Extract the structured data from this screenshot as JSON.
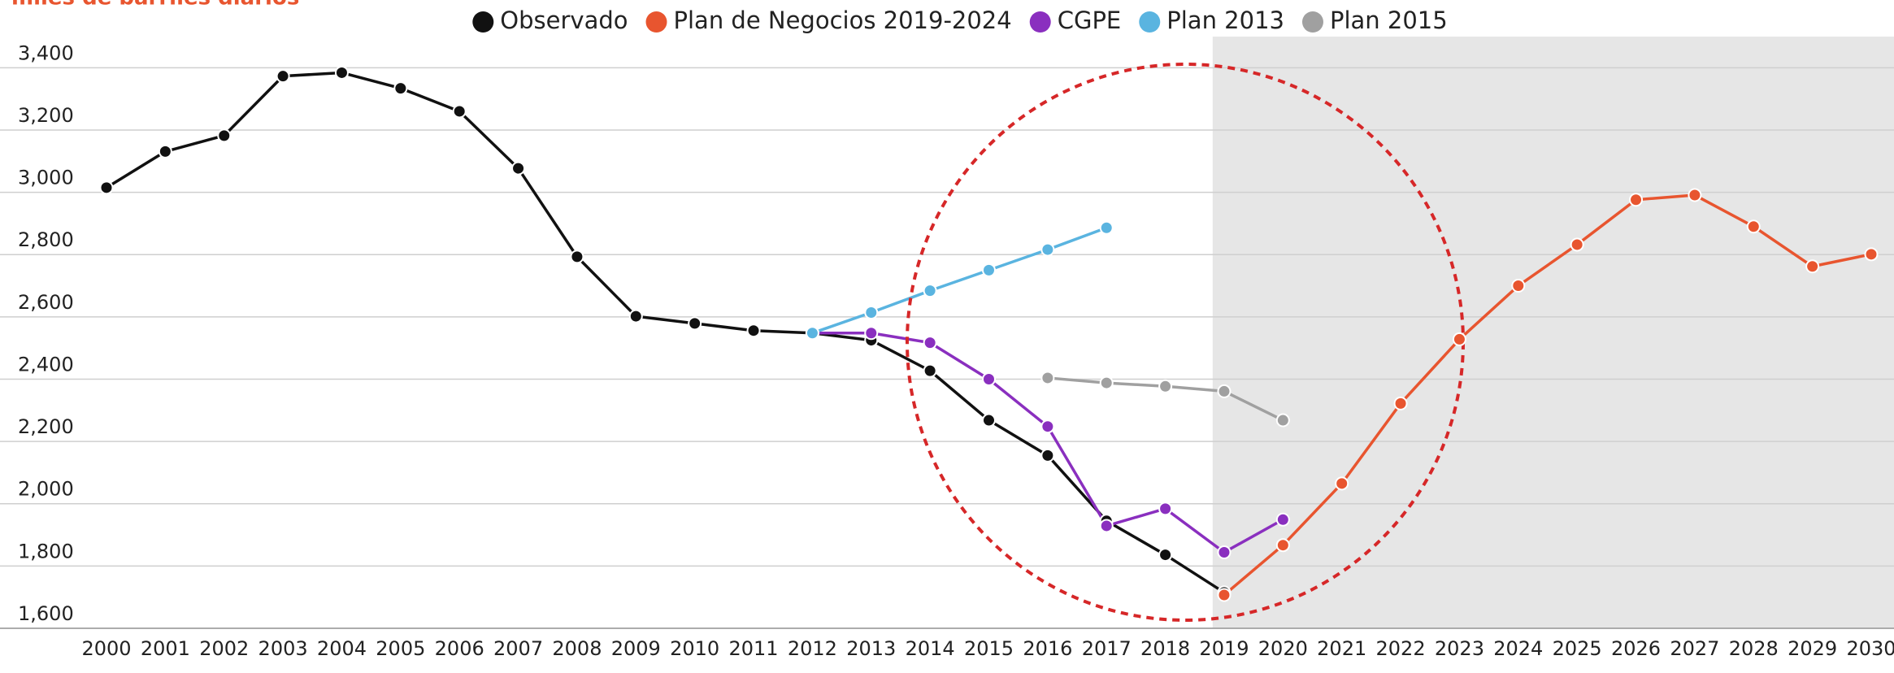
{
  "chart_data": {
    "type": "line",
    "subtitle": "miles de barriles diarios",
    "categories": [
      "2000",
      "2001",
      "2002",
      "2003",
      "2004",
      "2005",
      "2006",
      "2007",
      "2008",
      "2009",
      "2010",
      "2011",
      "2012",
      "2013",
      "2014",
      "2015",
      "2016",
      "2017",
      "2018",
      "2019",
      "2020",
      "2021",
      "2022",
      "2023",
      "2024",
      "2025",
      "2026",
      "2027",
      "2028",
      "2029",
      "2030"
    ],
    "series": [
      {
        "name": "Observado",
        "color": "#111111",
        "values": [
          3015,
          3131,
          3182,
          3373,
          3384,
          3334,
          3260,
          3077,
          2793,
          2602,
          2579,
          2556,
          2548,
          2525,
          2427,
          2268,
          2155,
          1945,
          1836,
          1715,
          null,
          null,
          null,
          null,
          null,
          null,
          null,
          null,
          null,
          null,
          null
        ]
      },
      {
        "name": "Plan de Negocios 2019-2024",
        "color": "#e8552f",
        "values": [
          null,
          null,
          null,
          null,
          null,
          null,
          null,
          null,
          null,
          null,
          null,
          null,
          null,
          null,
          null,
          null,
          null,
          null,
          null,
          1707,
          1867,
          2065,
          2322,
          2528,
          2700,
          2832,
          2976,
          2991,
          2890,
          2762,
          2801
        ]
      },
      {
        "name": "CGPE",
        "color": "#8a2fbf",
        "values": [
          null,
          null,
          null,
          null,
          null,
          null,
          null,
          null,
          null,
          null,
          null,
          null,
          2548,
          2548,
          2517,
          2400,
          2248,
          1929,
          1984,
          1844,
          1949,
          null,
          null,
          null,
          null,
          null,
          null,
          null,
          null,
          null,
          null
        ]
      },
      {
        "name": "Plan 2013",
        "color": "#5ab4e0",
        "values": [
          null,
          null,
          null,
          null,
          null,
          null,
          null,
          null,
          null,
          null,
          null,
          null,
          2548,
          2614,
          2684,
          2750,
          2816,
          2886,
          null,
          null,
          null,
          null,
          null,
          null,
          null,
          null,
          null,
          null,
          null,
          null,
          null
        ]
      },
      {
        "name": "Plan 2015",
        "color": "#a0a0a0",
        "values": [
          null,
          null,
          null,
          null,
          null,
          null,
          null,
          null,
          null,
          null,
          null,
          null,
          null,
          null,
          null,
          null,
          2404,
          2388,
          2377,
          2361,
          2268,
          null,
          null,
          null,
          null,
          null,
          null,
          null,
          null,
          null,
          null
        ]
      }
    ],
    "ylim": [
      1600,
      3500
    ],
    "yticks": [
      {
        "value": 1600,
        "label": "1,600"
      },
      {
        "value": 1800,
        "label": "1,800"
      },
      {
        "value": 2000,
        "label": "2,000"
      },
      {
        "value": 2200,
        "label": "2,200"
      },
      {
        "value": 2400,
        "label": "2,400"
      },
      {
        "value": 2600,
        "label": "2,600"
      },
      {
        "value": 2800,
        "label": "2,800"
      },
      {
        "value": 3000,
        "label": "3,000"
      },
      {
        "value": 3200,
        "label": "3,200"
      },
      {
        "value": 3400,
        "label": "3,400"
      }
    ],
    "grid": true,
    "shade_from": "2019"
  }
}
